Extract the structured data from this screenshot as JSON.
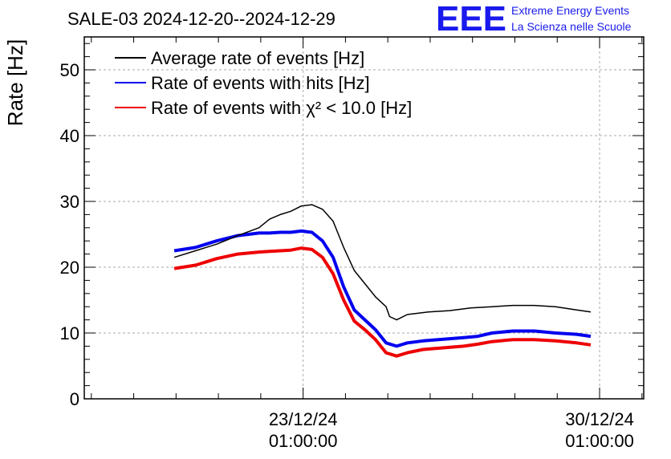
{
  "chart_data": {
    "type": "line",
    "title": "SALE-03 2024-12-20--2024-12-29",
    "ylabel": "Rate [Hz]",
    "xlabel": "",
    "ylim": [
      0,
      55
    ],
    "yticks": [
      0,
      10,
      20,
      30,
      40,
      50
    ],
    "xlim": [
      "2024-12-17T21:00:00",
      "2024-12-31T02:00:00"
    ],
    "xticks": [
      {
        "value": "2024-12-23T01:00:00",
        "label_line1": "23/12/24",
        "label_line2": "01:00:00"
      },
      {
        "value": "2024-12-30T01:00:00",
        "label_line1": "30/12/24",
        "label_line2": "01:00:00"
      }
    ],
    "grid": true,
    "legend_position": "top-left",
    "logo": {
      "mark": "EEE",
      "line1": "Extreme Energy Events",
      "line2": "La Scienza nelle Scuole",
      "color": "#1a1aee"
    },
    "series": [
      {
        "name": "Average rate of events [Hz]",
        "color": "#000000",
        "x": [
          "2024-12-20T00:00:00",
          "2024-12-20T12:00:00",
          "2024-12-21T00:00:00",
          "2024-12-21T12:00:00",
          "2024-12-22T00:00:00",
          "2024-12-22T06:00:00",
          "2024-12-22T12:00:00",
          "2024-12-22T18:00:00",
          "2024-12-23T00:00:00",
          "2024-12-23T06:00:00",
          "2024-12-23T12:00:00",
          "2024-12-23T18:00:00",
          "2024-12-24T00:00:00",
          "2024-12-24T06:00:00",
          "2024-12-24T12:00:00",
          "2024-12-24T18:00:00",
          "2024-12-25T00:00:00",
          "2024-12-25T02:00:00",
          "2024-12-25T06:00:00",
          "2024-12-25T12:00:00",
          "2024-12-26T00:00:00",
          "2024-12-26T12:00:00",
          "2024-12-27T00:00:00",
          "2024-12-27T12:00:00",
          "2024-12-28T00:00:00",
          "2024-12-28T12:00:00",
          "2024-12-29T00:00:00",
          "2024-12-29T12:00:00",
          "2024-12-29T20:00:00"
        ],
        "y": [
          21.5,
          22.5,
          23.5,
          24.8,
          26.0,
          27.3,
          28.0,
          28.5,
          29.3,
          29.5,
          28.8,
          27.0,
          23.0,
          19.5,
          17.5,
          15.5,
          14.0,
          12.5,
          12.0,
          12.8,
          13.2,
          13.4,
          13.8,
          14.0,
          14.2,
          14.2,
          14.0,
          13.5,
          13.2
        ]
      },
      {
        "name": "Rate of events with hits [Hz]",
        "color": "#0000ee",
        "x": [
          "2024-12-20T00:00:00",
          "2024-12-20T12:00:00",
          "2024-12-21T00:00:00",
          "2024-12-21T12:00:00",
          "2024-12-22T00:00:00",
          "2024-12-22T06:00:00",
          "2024-12-22T12:00:00",
          "2024-12-22T18:00:00",
          "2024-12-23T00:00:00",
          "2024-12-23T06:00:00",
          "2024-12-23T12:00:00",
          "2024-12-23T18:00:00",
          "2024-12-24T00:00:00",
          "2024-12-24T06:00:00",
          "2024-12-24T12:00:00",
          "2024-12-24T18:00:00",
          "2024-12-25T00:00:00",
          "2024-12-25T06:00:00",
          "2024-12-25T12:00:00",
          "2024-12-25T21:00:00",
          "2024-12-26T20:00:00",
          "2024-12-27T04:00:00",
          "2024-12-27T12:00:00",
          "2024-12-28T00:00:00",
          "2024-12-28T12:00:00",
          "2024-12-29T00:00:00",
          "2024-12-29T12:00:00",
          "2024-12-29T20:00:00"
        ],
        "y": [
          22.5,
          23.0,
          24.0,
          24.8,
          25.2,
          25.2,
          25.3,
          25.3,
          25.5,
          25.3,
          24.0,
          21.5,
          17.0,
          13.5,
          12.0,
          10.5,
          8.5,
          8.0,
          8.5,
          8.8,
          9.3,
          9.5,
          10.0,
          10.3,
          10.3,
          10.0,
          9.8,
          9.5
        ]
      },
      {
        "name": "Rate of events with χ² < 10.0 [Hz]",
        "color": "#ee0000",
        "x": [
          "2024-12-20T00:00:00",
          "2024-12-20T12:00:00",
          "2024-12-21T00:00:00",
          "2024-12-21T12:00:00",
          "2024-12-22T00:00:00",
          "2024-12-22T06:00:00",
          "2024-12-22T12:00:00",
          "2024-12-22T18:00:00",
          "2024-12-23T00:00:00",
          "2024-12-23T06:00:00",
          "2024-12-23T12:00:00",
          "2024-12-23T18:00:00",
          "2024-12-24T00:00:00",
          "2024-12-24T06:00:00",
          "2024-12-24T12:00:00",
          "2024-12-24T18:00:00",
          "2024-12-25T00:00:00",
          "2024-12-25T06:00:00",
          "2024-12-25T12:00:00",
          "2024-12-25T21:00:00",
          "2024-12-26T20:00:00",
          "2024-12-27T04:00:00",
          "2024-12-27T12:00:00",
          "2024-12-28T00:00:00",
          "2024-12-28T12:00:00",
          "2024-12-29T00:00:00",
          "2024-12-29T12:00:00",
          "2024-12-29T20:00:00"
        ],
        "y": [
          19.8,
          20.3,
          21.3,
          22.0,
          22.3,
          22.4,
          22.5,
          22.6,
          22.9,
          22.7,
          21.5,
          19.0,
          15.0,
          11.8,
          10.5,
          9.0,
          7.0,
          6.5,
          7.0,
          7.5,
          8.0,
          8.3,
          8.7,
          9.0,
          9.0,
          8.8,
          8.5,
          8.2
        ]
      }
    ]
  }
}
